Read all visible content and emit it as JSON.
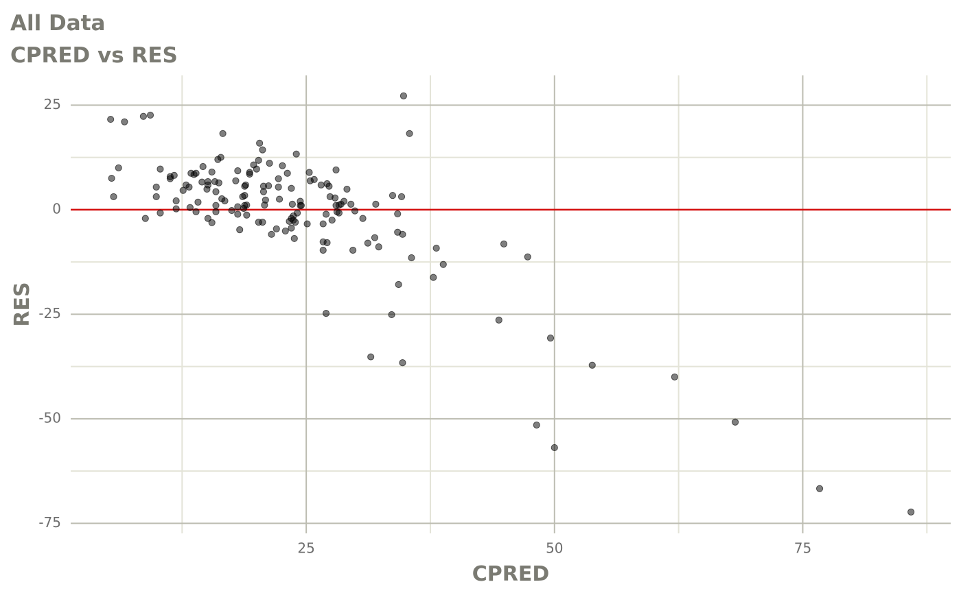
{
  "chart_data": {
    "type": "scatter",
    "title": "All Data",
    "subtitle": "CPRED vs RES",
    "x_label": "CPRED",
    "y_label": "RES",
    "xlim": [
      1.28,
      89.9
    ],
    "ylim": [
      -77.4,
      32.1
    ],
    "xticks": [
      25,
      50,
      75
    ],
    "yticks": [
      -75,
      -50,
      -25,
      0,
      25
    ],
    "xminor": [
      12.5,
      37.5,
      62.5,
      87.5
    ],
    "yminor": [
      -62.5,
      -37.5,
      -12.5,
      12.5
    ],
    "grid": true,
    "major_grid_color": "#bdbdb2",
    "minor_grid_color": "#e4e4d8",
    "hline": {
      "value": 0,
      "color": "#d40f0f"
    },
    "series": [
      {
        "color": "rgba(0,0,0,0.5)",
        "x": [
          5.3,
          5.4,
          5.6,
          6.1,
          6.7,
          8.6,
          8.8,
          9.3,
          9.9,
          9.9,
          10.3,
          10.3,
          11.3,
          11.3,
          11.7,
          11.9,
          11.9,
          12.6,
          12.9,
          13.2,
          13.3,
          13.4,
          13.7,
          13.9,
          13.9,
          14.1,
          14.5,
          14.6,
          15.0,
          15.1,
          15.1,
          15.1,
          15.5,
          15.5,
          15.8,
          15.9,
          15.9,
          15.9,
          16.1,
          16.2,
          16.4,
          16.5,
          16.6,
          16.8,
          17.5,
          17.9,
          18.1,
          18.1,
          18.1,
          18.3,
          18.6,
          18.7,
          18.8,
          18.8,
          18.8,
          18.9,
          19.0,
          19.0,
          19.3,
          19.3,
          19.7,
          20.0,
          20.2,
          20.2,
          20.3,
          20.6,
          20.6,
          20.7,
          20.7,
          20.8,
          20.9,
          21.2,
          21.3,
          21.5,
          22.0,
          22.2,
          22.2,
          22.3,
          22.6,
          22.9,
          23.1,
          23.3,
          23.5,
          23.5,
          23.5,
          23.6,
          23.7,
          23.7,
          23.8,
          23.9,
          24.0,
          24.1,
          24.4,
          24.4,
          24.5,
          25.1,
          25.3,
          25.4,
          25.8,
          26.5,
          26.7,
          26.7,
          26.7,
          27.0,
          27.0,
          27.1,
          27.1,
          27.3,
          27.4,
          27.6,
          27.9,
          28.0,
          28.0,
          28.1,
          28.3,
          28.3,
          28.5,
          28.8,
          29.1,
          29.5,
          29.7,
          29.9,
          30.7,
          31.2,
          31.5,
          31.9,
          32.0,
          32.3,
          33.6,
          33.7,
          34.2,
          34.2,
          34.3,
          34.6,
          34.7,
          34.7,
          34.8,
          35.4,
          35.6,
          37.8,
          38.1,
          38.8,
          44.4,
          44.9,
          47.3,
          48.2,
          49.6,
          50.0,
          53.8,
          62.1,
          68.2,
          76.7,
          85.9
        ],
        "values": [
          21.6,
          7.5,
          3.1,
          10.0,
          21.0,
          22.3,
          -2.1,
          22.6,
          5.4,
          3.1,
          -0.8,
          9.7,
          7.9,
          7.4,
          8.2,
          2.1,
          0.2,
          4.6,
          5.9,
          5.4,
          0.5,
          8.7,
          8.4,
          8.7,
          -0.5,
          1.8,
          6.6,
          10.3,
          4.9,
          5.9,
          6.7,
          -2.1,
          9.0,
          -3.1,
          6.7,
          4.3,
          1.0,
          -0.5,
          12.0,
          6.4,
          12.5,
          2.6,
          18.2,
          2.1,
          -0.2,
          6.9,
          -1.1,
          9.3,
          0.7,
          -4.8,
          3.1,
          0.3,
          3.4,
          1.0,
          5.6,
          5.9,
          -1.3,
          1.1,
          8.5,
          8.9,
          10.7,
          9.7,
          11.8,
          -3.0,
          15.9,
          14.3,
          -3.0,
          5.6,
          4.3,
          1.1,
          2.3,
          5.7,
          11.1,
          -5.9,
          -4.6,
          5.4,
          7.4,
          2.5,
          10.5,
          -5.1,
          8.7,
          -2.8,
          -4.4,
          5.1,
          -2.1,
          1.3,
          -2.5,
          -1.5,
          -6.9,
          -3.0,
          13.3,
          -0.8,
          1.0,
          2.0,
          1.0,
          -3.4,
          8.9,
          6.9,
          7.2,
          5.9,
          -3.4,
          -7.7,
          -9.7,
          -1.1,
          -24.8,
          6.2,
          -7.9,
          5.6,
          3.1,
          -2.5,
          2.8,
          9.5,
          1.0,
          -0.5,
          -0.8,
          1.1,
          1.3,
          2.0,
          4.9,
          1.3,
          -9.7,
          -0.3,
          -2.1,
          -8.0,
          -35.2,
          -6.7,
          1.3,
          -8.9,
          -25.1,
          3.4,
          -1.0,
          -5.4,
          -17.9,
          3.1,
          -5.9,
          -36.6,
          27.2,
          18.2,
          -11.5,
          -16.2,
          -9.2,
          -13.1,
          -26.4,
          -8.2,
          -11.3,
          -51.5,
          -30.7,
          -56.9,
          -37.2,
          -40.0,
          -50.8,
          -66.7,
          -72.3
        ]
      }
    ]
  }
}
